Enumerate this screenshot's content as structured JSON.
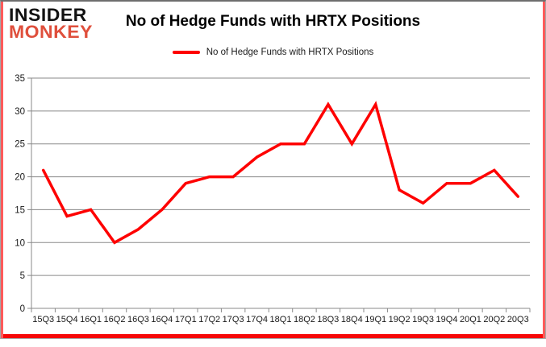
{
  "logo": {
    "line1": "INSIDER",
    "line2": "MONKEY"
  },
  "header": {
    "title": "No of Hedge Funds with HRTX Positions"
  },
  "legend": {
    "label": "No of Hedge Funds with HRTX Positions",
    "color": "#fe0000"
  },
  "colors": {
    "logo_red": "#df4f3c",
    "series_red": "#fe0000",
    "gridline": "#8a8a8a",
    "axis_text": "#1a1a1a",
    "card_accent": "#f60707"
  },
  "chart_data": {
    "type": "line",
    "title": "No of Hedge Funds with HRTX Positions",
    "categories": [
      "15Q3",
      "15Q4",
      "16Q1",
      "16Q2",
      "16Q3",
      "16Q4",
      "17Q1",
      "17Q2",
      "17Q3",
      "17Q4",
      "18Q1",
      "18Q2",
      "18Q3",
      "18Q4",
      "19Q1",
      "19Q2",
      "19Q3",
      "19Q4",
      "20Q1",
      "20Q2",
      "20Q3"
    ],
    "series": [
      {
        "name": "No of Hedge Funds with HRTX Positions",
        "color": "#fe0000",
        "values": [
          21,
          14,
          15,
          10,
          12,
          15,
          19,
          20,
          20,
          23,
          25,
          25,
          31,
          25,
          31,
          18,
          16,
          19,
          19,
          21,
          17
        ]
      }
    ],
    "xlabel": "",
    "ylabel": "",
    "ylim": [
      0,
      35
    ],
    "ytick_step": 5,
    "grid": true,
    "legend_position": "top-center"
  }
}
